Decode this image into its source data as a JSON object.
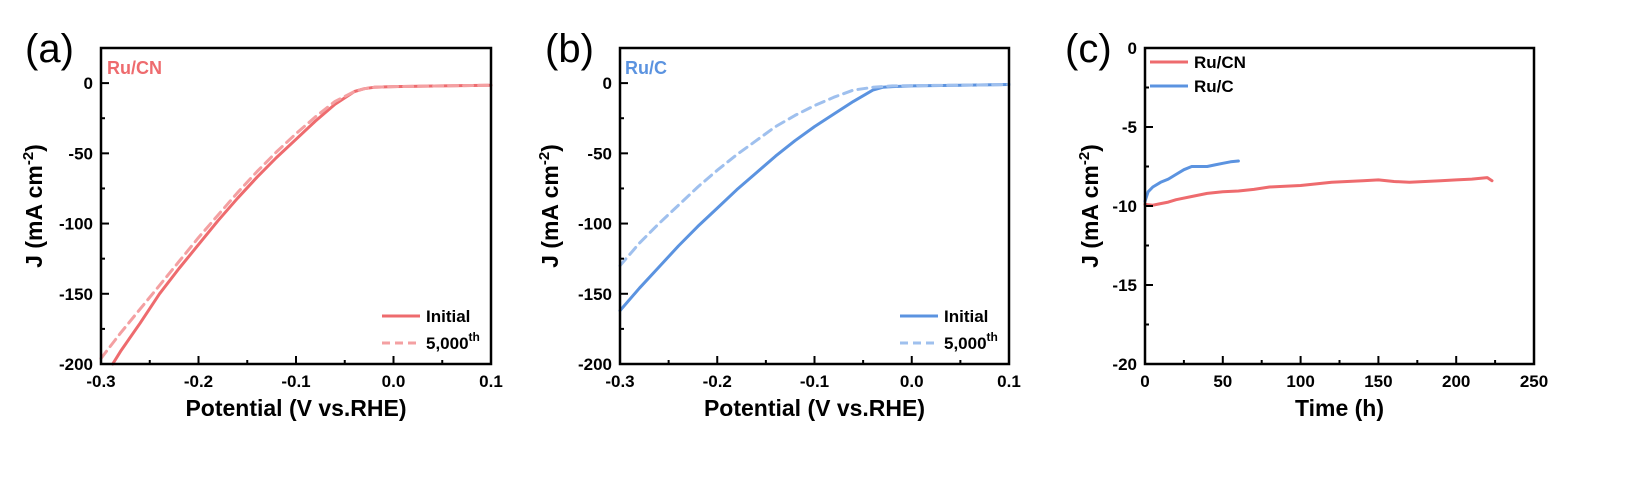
{
  "figure": {
    "background": "#ffffff",
    "axis_color": "#000000"
  },
  "chart_data": [
    {
      "panel_label": "(a)",
      "type": "line",
      "title": "",
      "inset_label": "Ru/CN",
      "inset_color": "#ee6b6e",
      "xlabel": "Potential (V vs.RHE)",
      "ylabel": "J (mA cm",
      "ylabel_sup": "-2",
      "ylabel_close": ")",
      "xlim": [
        -0.3,
        0.1
      ],
      "ylim": [
        -200,
        25
      ],
      "xticks": [
        -0.3,
        -0.2,
        -0.1,
        0.0,
        0.1
      ],
      "xtick_labels": [
        "-0.3",
        "-0.2",
        "-0.1",
        "0.0",
        "0.1"
      ],
      "yticks": [
        -200,
        -150,
        -100,
        -50,
        0
      ],
      "ytick_labels": [
        "-200",
        "-150",
        "-100",
        "-50",
        "0"
      ],
      "legend_position": "bottom-right",
      "series": [
        {
          "name": "Initial",
          "sup": "",
          "color": "#ee6b6e",
          "dash": "solid",
          "x": [
            -0.288,
            -0.28,
            -0.26,
            -0.24,
            -0.22,
            -0.2,
            -0.18,
            -0.16,
            -0.14,
            -0.12,
            -0.1,
            -0.08,
            -0.06,
            -0.04,
            -0.03,
            -0.02,
            0.0,
            0.05,
            0.1
          ],
          "y": [
            -200,
            -191,
            -171,
            -150,
            -132,
            -115,
            -98,
            -82,
            -67,
            -53,
            -40,
            -27,
            -15,
            -6,
            -4,
            -3,
            -2.5,
            -2,
            -1.5
          ]
        },
        {
          "name": "5,000",
          "sup": "th",
          "color": "#f4a0a2",
          "dash": "dashed",
          "x": [
            -0.3,
            -0.28,
            -0.26,
            -0.24,
            -0.22,
            -0.2,
            -0.18,
            -0.16,
            -0.14,
            -0.12,
            -0.1,
            -0.08,
            -0.06,
            -0.04,
            -0.03,
            -0.02,
            0.0,
            0.05,
            0.1
          ],
          "y": [
            -196,
            -178,
            -161,
            -144,
            -127,
            -110,
            -94,
            -78,
            -63,
            -49,
            -36,
            -24,
            -13,
            -6,
            -4,
            -3,
            -2.5,
            -2,
            -1.5
          ]
        }
      ]
    },
    {
      "panel_label": "(b)",
      "type": "line",
      "title": "",
      "inset_label": "Ru/C",
      "inset_color": "#5b93e0",
      "xlabel": "Potential (V vs.RHE)",
      "ylabel": "J (mA cm",
      "ylabel_sup": "-2",
      "ylabel_close": ")",
      "xlim": [
        -0.3,
        0.1
      ],
      "ylim": [
        -200,
        25
      ],
      "xticks": [
        -0.3,
        -0.2,
        -0.1,
        0.0,
        0.1
      ],
      "xtick_labels": [
        "-0.3",
        "-0.2",
        "-0.1",
        "0.0",
        "0.1"
      ],
      "yticks": [
        -200,
        -150,
        -100,
        -50,
        0
      ],
      "ytick_labels": [
        "-200",
        "-150",
        "-100",
        "-50",
        "0"
      ],
      "legend_position": "bottom-right",
      "series": [
        {
          "name": "Initial",
          "sup": "",
          "color": "#5b93e0",
          "dash": "solid",
          "x": [
            -0.3,
            -0.28,
            -0.26,
            -0.24,
            -0.22,
            -0.2,
            -0.18,
            -0.16,
            -0.14,
            -0.12,
            -0.1,
            -0.08,
            -0.06,
            -0.04,
            -0.03,
            -0.02,
            0.0,
            0.05,
            0.1
          ],
          "y": [
            -162,
            -146,
            -131,
            -116,
            -102,
            -89,
            -76,
            -64,
            -52,
            -41,
            -31,
            -22,
            -13,
            -5,
            -3,
            -2.5,
            -2,
            -1.5,
            -1
          ]
        },
        {
          "name": "5,000",
          "sup": "th",
          "color": "#9fc0ee",
          "dash": "dashed",
          "x": [
            -0.3,
            -0.28,
            -0.26,
            -0.24,
            -0.22,
            -0.2,
            -0.18,
            -0.16,
            -0.14,
            -0.12,
            -0.1,
            -0.08,
            -0.06,
            -0.04,
            -0.03,
            -0.02,
            0.0,
            0.05,
            0.1
          ],
          "y": [
            -130,
            -114,
            -100,
            -87,
            -74,
            -62,
            -51,
            -41,
            -31,
            -23,
            -16,
            -10,
            -5,
            -3,
            -2.5,
            -2,
            -1.8,
            -1.5,
            -1
          ]
        }
      ]
    },
    {
      "panel_label": "(c)",
      "type": "line",
      "title": "",
      "xlabel": "Time (h)",
      "ylabel": "J (mA cm",
      "ylabel_sup": "-2",
      "ylabel_close": ")",
      "xlim": [
        0,
        250
      ],
      "ylim": [
        -20,
        0
      ],
      "xticks": [
        0,
        50,
        100,
        150,
        200,
        250
      ],
      "xtick_labels": [
        "0",
        "50",
        "100",
        "150",
        "200",
        "250"
      ],
      "yticks": [
        -20,
        -15,
        -10,
        -5,
        0
      ],
      "ytick_labels": [
        "-20",
        "-15",
        "-10",
        "-5",
        "0"
      ],
      "legend_position": "top-left",
      "series": [
        {
          "name": "Ru/CN",
          "sup": "",
          "color": "#ee6b6e",
          "dash": "solid",
          "x": [
            0,
            5,
            10,
            15,
            20,
            30,
            40,
            50,
            60,
            70,
            80,
            90,
            100,
            110,
            120,
            130,
            140,
            150,
            160,
            170,
            180,
            190,
            200,
            210,
            220,
            223
          ],
          "y": [
            -9.9,
            -9.95,
            -9.85,
            -9.75,
            -9.6,
            -9.4,
            -9.2,
            -9.1,
            -9.05,
            -8.95,
            -8.8,
            -8.75,
            -8.7,
            -8.6,
            -8.5,
            -8.45,
            -8.4,
            -8.35,
            -8.45,
            -8.5,
            -8.45,
            -8.4,
            -8.35,
            -8.3,
            -8.2,
            -8.4
          ]
        },
        {
          "name": "Ru/C",
          "sup": "",
          "color": "#5b93e0",
          "dash": "solid",
          "x": [
            0,
            2,
            5,
            10,
            15,
            20,
            25,
            30,
            35,
            40,
            45,
            50,
            55,
            60
          ],
          "y": [
            -9.7,
            -9.1,
            -8.8,
            -8.5,
            -8.3,
            -8.0,
            -7.7,
            -7.5,
            -7.5,
            -7.5,
            -7.4,
            -7.3,
            -7.2,
            -7.15
          ]
        }
      ]
    }
  ]
}
